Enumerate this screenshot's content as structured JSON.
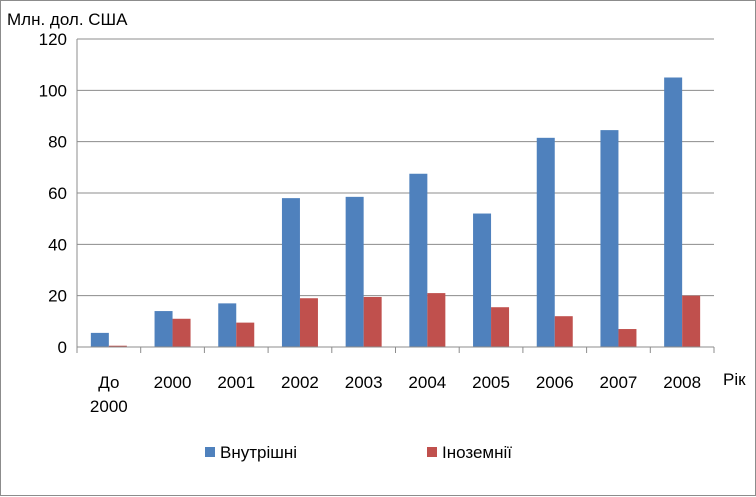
{
  "chart_data": {
    "type": "bar",
    "ylabel": "Млн. дол. США",
    "xlabel": "Рік",
    "ylim": [
      0,
      120
    ],
    "yticks": [
      0,
      20,
      40,
      60,
      80,
      100,
      120
    ],
    "grid": true,
    "legend": "bottom",
    "categories": [
      [
        "До",
        "2000"
      ],
      [
        "2000"
      ],
      [
        "2001"
      ],
      [
        "2002"
      ],
      [
        "2003"
      ],
      [
        "2004"
      ],
      [
        "2005"
      ],
      [
        "2006"
      ],
      [
        "2007"
      ],
      [
        "2008"
      ]
    ],
    "series": [
      {
        "name": "Внутрішні",
        "color": "#4f81bd",
        "values": [
          5.5,
          14,
          17,
          58,
          58.5,
          67.5,
          52,
          81.5,
          84.5,
          105
        ]
      },
      {
        "name": "Іноземнії",
        "color": "#c0504d",
        "values": [
          0.5,
          11,
          9.5,
          19,
          19.5,
          21,
          15.5,
          12,
          7,
          20
        ]
      }
    ]
  }
}
